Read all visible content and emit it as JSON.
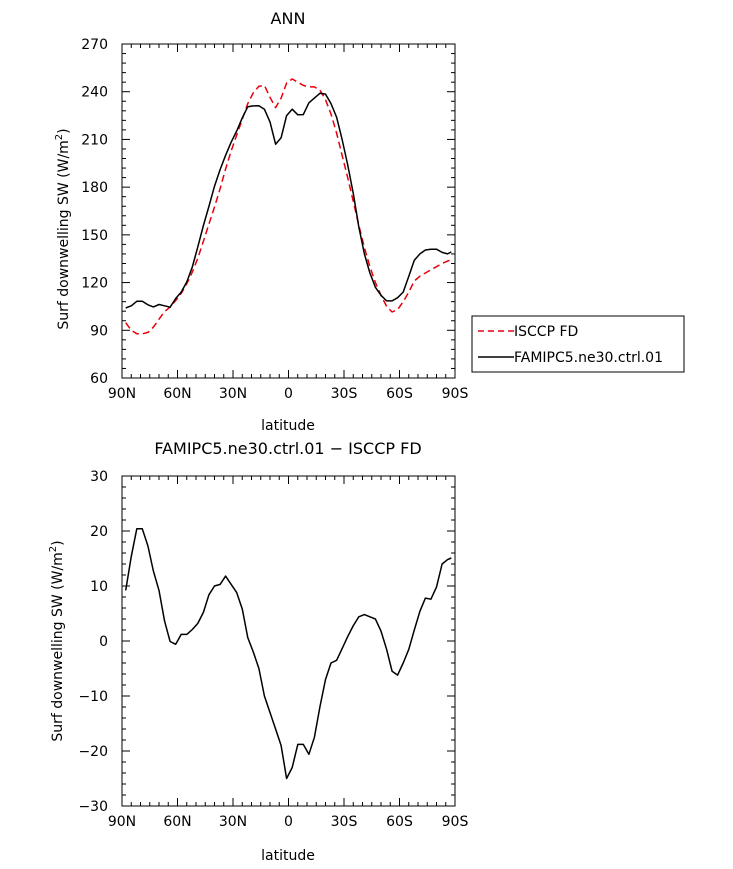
{
  "chart_data": [
    {
      "type": "line",
      "title": "ANN",
      "xlabel": "latitude",
      "ylabel": "Surf downwelling SW (W/m²)",
      "ylabel_main": "Surf downwelling SW (W/m",
      "ylabel_sup": "2",
      "ylabel_tail": ")",
      "xlim": [
        90,
        -90
      ],
      "ylim": [
        60,
        270
      ],
      "xticks": [
        90,
        60,
        30,
        0,
        -30,
        -60,
        -90
      ],
      "xtick_labels": [
        "90N",
        "60N",
        "30N",
        "0",
        "30S",
        "60S",
        "90S"
      ],
      "yticks": [
        60,
        90,
        120,
        150,
        180,
        210,
        240,
        270
      ],
      "ytick_labels": [
        "60",
        "90",
        "120",
        "150",
        "180",
        "210",
        "240",
        "270"
      ],
      "grid": false,
      "legend_position": "right",
      "series": [
        {
          "name": "ISCCP FD",
          "color": "#e8000b",
          "dash": "dashed",
          "x": [
            88,
            85,
            82,
            79,
            76,
            73,
            70,
            67,
            64,
            61,
            58,
            55,
            52,
            49,
            46,
            43,
            40,
            37,
            34,
            31,
            28,
            25,
            22,
            19,
            16,
            13,
            10,
            7,
            4,
            1,
            -2,
            -5,
            -8,
            -11,
            -14,
            -17,
            -20,
            -23,
            -26,
            -29,
            -32,
            -35,
            -38,
            -41,
            -44,
            -47,
            -50,
            -53,
            -56,
            -59,
            -62,
            -65,
            -68,
            -71,
            -74,
            -77,
            -80,
            -83,
            -86,
            -88
          ],
          "y": [
            94.8,
            90,
            87.8,
            87.8,
            88.7,
            92,
            97,
            101.8,
            104.6,
            108.7,
            113.2,
            119.3,
            126.6,
            135.3,
            146,
            156.7,
            167.5,
            179,
            191.4,
            202.8,
            212.8,
            222.7,
            232.6,
            239.3,
            243.4,
            244,
            236.5,
            230,
            236,
            245.5,
            248,
            246,
            244,
            243,
            243,
            241,
            235,
            226,
            214,
            200,
            186,
            171,
            156,
            142,
            130,
            120,
            112,
            105,
            101.5,
            103,
            108,
            114,
            121,
            124,
            126,
            128,
            130,
            132,
            133.5,
            134.4
          ]
        },
        {
          "name": "FAMIPC5.ne30.ctrl.01",
          "color": "#000000",
          "dash": "solid",
          "x": [
            88,
            85,
            82,
            79,
            76,
            73,
            70,
            67,
            64,
            61,
            58,
            55,
            52,
            49,
            46,
            43,
            40,
            37,
            34,
            31,
            28,
            25,
            22,
            19,
            16,
            13,
            10,
            7,
            4,
            1,
            -2,
            -5,
            -8,
            -11,
            -14,
            -17,
            -20,
            -23,
            -26,
            -29,
            -32,
            -35,
            -38,
            -41,
            -44,
            -47,
            -50,
            -53,
            -56,
            -59,
            -62,
            -65,
            -68,
            -71,
            -74,
            -77,
            -80,
            -83,
            -86,
            -88
          ],
          "y": [
            104,
            105.4,
            108.2,
            108.2,
            106,
            104.7,
            106.2,
            105.4,
            104.5,
            110,
            114,
            120.4,
            129.8,
            142.4,
            155.9,
            167.8,
            180.6,
            191,
            200,
            208.3,
            215.3,
            223.6,
            230.6,
            231.1,
            231.2,
            229,
            221,
            207,
            211,
            225,
            229,
            225.5,
            225.6,
            233,
            236,
            239,
            238.5,
            232.5,
            224,
            210,
            194,
            176,
            155,
            138,
            126,
            117,
            112,
            108.5,
            108.5,
            110.5,
            114,
            124,
            134,
            138,
            140.5,
            141,
            141,
            139,
            138,
            139.3
          ]
        }
      ]
    },
    {
      "type": "line",
      "title": "FAMIPC5.ne30.ctrl.01 − ISCCP FD",
      "xlabel": "latitude",
      "ylabel": "Surf downwelling SW (W/m²)",
      "ylabel_main": "Surf downwelling SW (W/m",
      "ylabel_sup": "2",
      "ylabel_tail": ")",
      "xlim": [
        90,
        -90
      ],
      "ylim": [
        -30,
        30
      ],
      "xticks": [
        90,
        60,
        30,
        0,
        -30,
        -60,
        -90
      ],
      "xtick_labels": [
        "90N",
        "60N",
        "30N",
        "0",
        "30S",
        "60S",
        "90S"
      ],
      "yticks": [
        -30,
        -20,
        -10,
        0,
        10,
        20,
        30
      ],
      "ytick_labels": [
        "−30",
        "−20",
        "−10",
        "0",
        "10",
        "20",
        "30"
      ],
      "grid": false,
      "series": [
        {
          "color": "#000000",
          "dash": "solid",
          "x": [
            88,
            85,
            82,
            79,
            76,
            73,
            70,
            67,
            64,
            61,
            58,
            55,
            52,
            49,
            46,
            43,
            40,
            37,
            34,
            31,
            28,
            25,
            22,
            19,
            16,
            13,
            10,
            7,
            4,
            1,
            -2,
            -5,
            -8,
            -11,
            -14,
            -17,
            -20,
            -23,
            -26,
            -29,
            -32,
            -35,
            -38,
            -41,
            -44,
            -47,
            -50,
            -53,
            -56,
            -59,
            -62,
            -65,
            -68,
            -71,
            -74,
            -77,
            -80,
            -83,
            -86,
            -88
          ],
          "y": [
            9.2,
            15.4,
            20.4,
            20.4,
            17.3,
            12.7,
            9.2,
            3.6,
            -0.1,
            -0.6,
            1.2,
            1.2,
            2.1,
            3.2,
            5.2,
            8.4,
            10,
            10.3,
            11.8,
            10.3,
            8.8,
            5.8,
            0.6,
            -2,
            -5,
            -10,
            -13,
            -16,
            -19,
            -25,
            -23,
            -18.8,
            -18.8,
            -20.6,
            -17.5,
            -12,
            -7,
            -4,
            -3.5,
            -1.4,
            0.8,
            2.8,
            4.4,
            4.8,
            4.4,
            4,
            1.8,
            -1.5,
            -5.5,
            -6.2,
            -4,
            -1.5,
            2,
            5.4,
            7.8,
            7.6,
            9.8,
            14,
            14.8,
            15.1
          ]
        }
      ]
    }
  ]
}
